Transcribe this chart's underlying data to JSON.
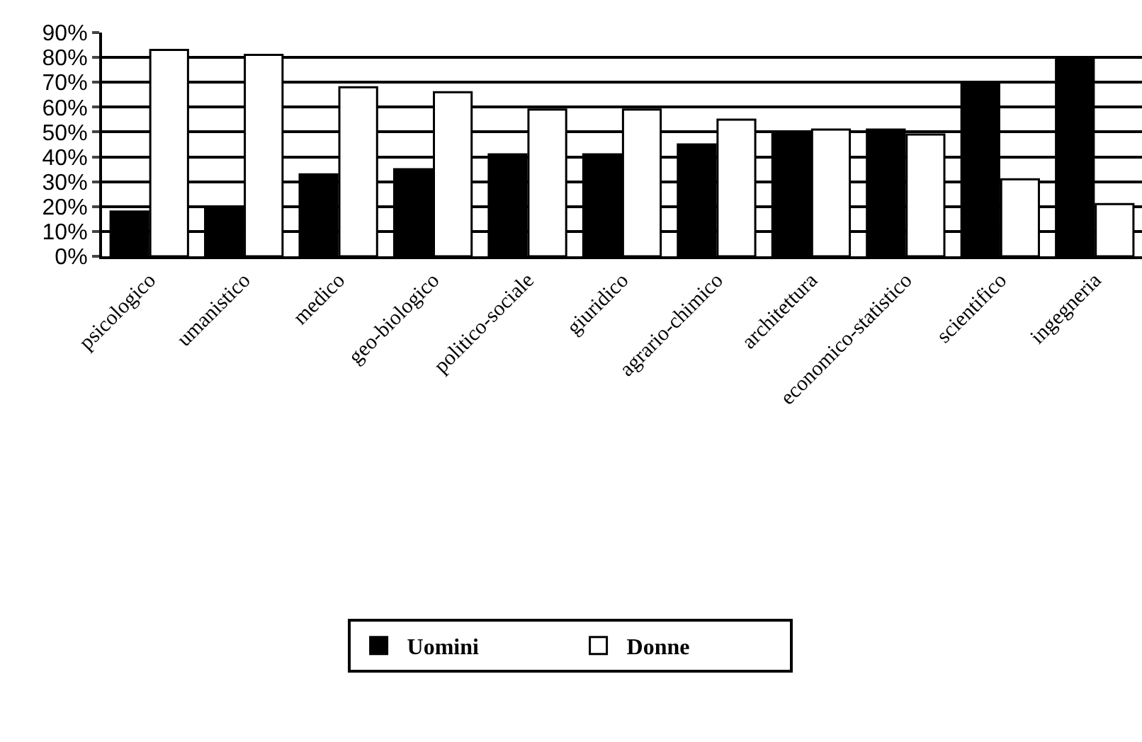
{
  "chart_data": {
    "type": "bar",
    "categories": [
      "psicologico",
      "umanistico",
      "medico",
      "geo-biologico",
      "politico-sociale",
      "giuridico",
      "agrario-chimico",
      "architettura",
      "economico-statistico",
      "scientifico",
      "ingegneria"
    ],
    "series": [
      {
        "name": "Uomini",
        "color": "#000000",
        "values": [
          18,
          20,
          33,
          35,
          41,
          41,
          45,
          50,
          51,
          70,
          80
        ]
      },
      {
        "name": "Donne",
        "color": "#ffffff",
        "values": [
          83,
          81,
          68,
          66,
          59,
          59,
          55,
          51,
          49,
          31,
          21
        ]
      }
    ],
    "ylim": [
      0,
      90
    ],
    "yticks": [
      {
        "value": 0,
        "label": "0%"
      },
      {
        "value": 10,
        "label": "10%"
      },
      {
        "value": 20,
        "label": "20%"
      },
      {
        "value": 30,
        "label": "30%"
      },
      {
        "value": 40,
        "label": "40%"
      },
      {
        "value": 50,
        "label": "50%"
      },
      {
        "value": 60,
        "label": "60%"
      },
      {
        "value": 70,
        "label": "70%"
      },
      {
        "value": 80,
        "label": "80%"
      },
      {
        "value": 90,
        "label": "90%"
      }
    ],
    "grid": "y",
    "legend": "bottom"
  }
}
